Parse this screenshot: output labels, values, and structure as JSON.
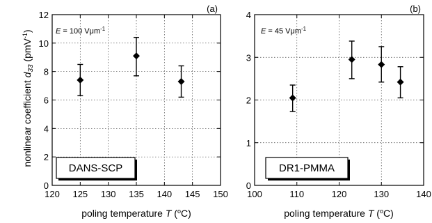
{
  "y_axis_label_text": "nonlinear coefficient ",
  "y_axis_label_var": "d",
  "y_axis_label_sub": "33",
  "y_axis_label_unit": " (pmV",
  "y_axis_label_exp": "-1",
  "y_axis_label_close": ")",
  "chart_data": [
    {
      "type": "scatter",
      "panel_tag": "(a)",
      "annotation": {
        "prefix": "E",
        "rest": " = 100 Vμm",
        "exp": "-1"
      },
      "material_label": "DANS-SCP",
      "xlabel": {
        "text": "poling temperature ",
        "var": "T",
        "unit": " (",
        "deg": "o",
        "close": "C)"
      },
      "xlim": [
        120,
        150
      ],
      "ylim": [
        0,
        12
      ],
      "xticks": [
        120,
        125,
        130,
        135,
        140,
        145,
        150
      ],
      "yticks": [
        0,
        2,
        4,
        6,
        8,
        10,
        12
      ],
      "grid": true,
      "points": [
        {
          "x": 125,
          "y": 7.4,
          "err_low": 6.3,
          "err_high": 8.5
        },
        {
          "x": 135,
          "y": 9.1,
          "err_low": 7.7,
          "err_high": 10.4
        },
        {
          "x": 143,
          "y": 7.3,
          "err_low": 6.2,
          "err_high": 8.4
        }
      ]
    },
    {
      "type": "scatter",
      "panel_tag": "(b)",
      "annotation": {
        "prefix": "E",
        "rest": " = 45 Vμm",
        "exp": "-1"
      },
      "material_label": "DR1-PMMA",
      "xlabel": {
        "text": "poling temperature ",
        "var": "T",
        "unit": " (",
        "deg": "o",
        "close": "C)"
      },
      "xlim": [
        100,
        140
      ],
      "ylim": [
        0,
        4
      ],
      "xticks": [
        100,
        110,
        120,
        130,
        140
      ],
      "yticks": [
        0,
        1,
        2,
        3,
        4
      ],
      "grid": true,
      "points": [
        {
          "x": 109,
          "y": 2.05,
          "err_low": 1.73,
          "err_high": 2.35
        },
        {
          "x": 123,
          "y": 2.95,
          "err_low": 2.5,
          "err_high": 3.38
        },
        {
          "x": 130,
          "y": 2.83,
          "err_low": 2.42,
          "err_high": 3.25
        },
        {
          "x": 134.5,
          "y": 2.42,
          "err_low": 2.05,
          "err_high": 2.78
        }
      ]
    }
  ]
}
